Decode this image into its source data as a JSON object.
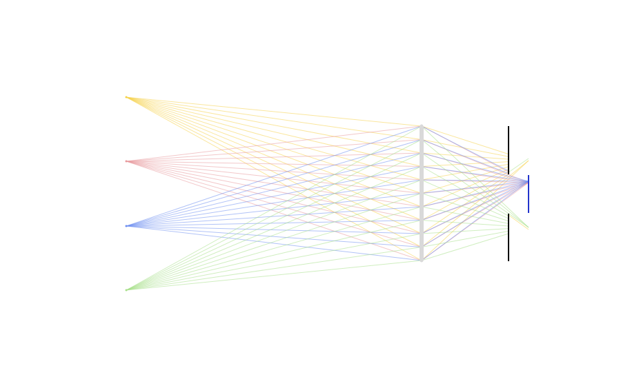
{
  "diagram": {
    "type": "optics-ray-diagram",
    "colors": {
      "background": "#ffffff",
      "lens": "#d9d9d9",
      "aperture": "#000000",
      "sensor": "#2233cc",
      "sources": [
        "#f5d24a",
        "#e8999c",
        "#6f8ff0",
        "#a8e08a"
      ]
    },
    "sources": [
      {
        "name": "source-yellow",
        "color_index": 0
      },
      {
        "name": "source-red",
        "color_index": 1
      },
      {
        "name": "source-blue",
        "color_index": 2
      },
      {
        "name": "source-green",
        "color_index": 3
      }
    ],
    "lens_sample_count": 11
  }
}
